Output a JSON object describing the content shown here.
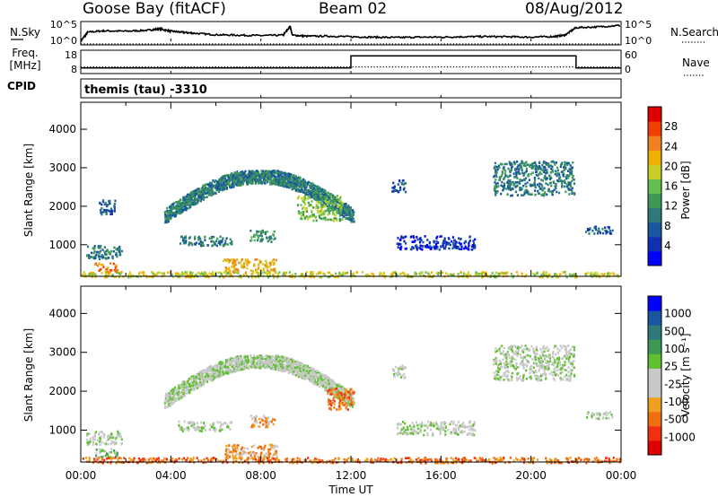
{
  "header": {
    "station": "Goose Bay (fitACF)",
    "beam": "Beam 02",
    "date": "08/Aug/2012"
  },
  "chart_data": [
    {
      "type": "line",
      "panel": "noise",
      "left_label": "N.Sky",
      "right_label": "N.Search",
      "left_ticks": [
        "10^5",
        "10^0"
      ],
      "right_ticks": [
        "10^5",
        "10^0"
      ],
      "x_range_hours": [
        0,
        24
      ],
      "series": [
        {
          "name": "N.Sky",
          "style": "solid",
          "x": [
            0,
            0.3,
            1,
            2,
            3,
            3.5,
            4,
            4.5,
            5,
            6,
            7,
            8,
            9,
            9.3,
            9.4,
            10,
            11,
            12,
            13,
            14,
            15,
            16,
            17,
            18,
            19,
            20,
            21,
            21.5,
            22,
            23,
            24
          ],
          "y": [
            0.1,
            0.55,
            0.62,
            0.6,
            0.65,
            0.72,
            0.6,
            0.55,
            0.5,
            0.42,
            0.4,
            0.38,
            0.4,
            0.85,
            0.4,
            0.35,
            0.35,
            0.32,
            0.3,
            0.28,
            0.3,
            0.3,
            0.32,
            0.33,
            0.32,
            0.3,
            0.33,
            0.4,
            0.78,
            0.82,
            0.9
          ]
        },
        {
          "name": "N.Search",
          "style": "dotted",
          "x": [
            0,
            24
          ],
          "y": [
            0.0,
            0.0
          ]
        }
      ]
    },
    {
      "type": "line",
      "panel": "frequency",
      "left_label": "Freq.",
      "left_unit": "[MHz]",
      "right_label": "Nave",
      "left_ticks": [
        "18",
        "8"
      ],
      "right_ticks": [
        "60",
        "0"
      ],
      "series": [
        {
          "name": "Freq.",
          "style": "solid",
          "x": [
            0,
            12,
            12,
            22,
            22,
            24
          ],
          "y": [
            10.4,
            10.4,
            15.6,
            15.6,
            10.4,
            10.4
          ]
        },
        {
          "name": "Nave",
          "style": "dotted",
          "x": [
            0,
            24
          ],
          "y": [
            17,
            17
          ]
        }
      ]
    },
    {
      "type": "table",
      "panel": "cpid",
      "label": "CPID",
      "value": "themis (tau)  -3310"
    },
    {
      "type": "heatmap",
      "panel": "power",
      "ylabel": "Slant Range [km]",
      "yticks": [
        "1000",
        "2000",
        "3000",
        "4000"
      ],
      "y_range_km": [
        180,
        4700
      ],
      "colorbar_label": "Power [dB]",
      "colorbar_ticks": [
        "4",
        "8",
        "12",
        "16",
        "20",
        "24",
        "28"
      ],
      "palette": [
        "#0000ff",
        "#1030b0",
        "#1a56a0",
        "#2e7a7a",
        "#3c9a55",
        "#66c050",
        "#c8d028",
        "#f0b000",
        "#f08020",
        "#f04000",
        "#e00000"
      ],
      "x_range_hours": [
        0,
        24
      ],
      "blobs": [
        {
          "t0": 3.7,
          "t1": 12.1,
          "r0": 1550,
          "r1": 2950,
          "shape": "arc",
          "level": 3
        },
        {
          "t0": 9.6,
          "t1": 11.6,
          "r0": 1650,
          "r1": 2300,
          "shape": "block",
          "level": 5
        },
        {
          "t0": 4.3,
          "t1": 6.7,
          "r0": 1000,
          "r1": 1250,
          "shape": "block",
          "level": 3
        },
        {
          "t0": 7.5,
          "t1": 8.6,
          "r0": 1100,
          "r1": 1400,
          "shape": "block",
          "level": 4
        },
        {
          "t0": 0.2,
          "t1": 1.8,
          "r0": 650,
          "r1": 1000,
          "shape": "block",
          "level": 3
        },
        {
          "t0": 0.6,
          "t1": 1.6,
          "r0": 300,
          "r1": 550,
          "shape": "block",
          "level": 8
        },
        {
          "t0": 6.3,
          "t1": 8.7,
          "r0": 300,
          "r1": 650,
          "shape": "block",
          "level": 7
        },
        {
          "t0": 0.8,
          "t1": 1.5,
          "r0": 1800,
          "r1": 2200,
          "shape": "block",
          "level": 2
        },
        {
          "t0": 13.8,
          "t1": 14.4,
          "r0": 2350,
          "r1": 2700,
          "shape": "block",
          "level": 2
        },
        {
          "t0": 18.3,
          "t1": 21.9,
          "r0": 2300,
          "r1": 3200,
          "shape": "block",
          "level": 3
        },
        {
          "t0": 22.4,
          "t1": 23.6,
          "r0": 1300,
          "r1": 1500,
          "shape": "block",
          "level": 2
        },
        {
          "t0": 14.0,
          "t1": 17.5,
          "r0": 900,
          "r1": 1250,
          "shape": "block",
          "level": 1
        },
        {
          "t0": 0.0,
          "t1": 24.0,
          "r0": 180,
          "r1": 320,
          "shape": "ground",
          "level": 6
        }
      ]
    },
    {
      "type": "heatmap",
      "panel": "velocity",
      "ylabel": "Slant Range [km]",
      "yticks": [
        "1000",
        "2000",
        "3000",
        "4000"
      ],
      "y_range_km": [
        180,
        4700
      ],
      "colorbar_label": "Velocity [m s⁻¹]",
      "colorbar_ticks": [
        "1000",
        "500",
        "100",
        "25",
        "-25",
        "-100",
        "-500",
        "-1000"
      ],
      "palette": [
        "#e00000",
        "#f03010",
        "#f07010",
        "#f0a020",
        "#c8c8c8",
        "#c8c8c8",
        "#60c030",
        "#3c9a55",
        "#2e7a7a",
        "#1a56a0",
        "#0000ff"
      ],
      "x_range_hours": [
        0,
        24
      ],
      "blobs": [
        {
          "t0": 3.7,
          "t1": 12.1,
          "r0": 1550,
          "r1": 2950,
          "shape": "arc",
          "level": 5
        },
        {
          "t0": 10.9,
          "t1": 12.1,
          "r0": 1550,
          "r1": 2100,
          "shape": "block",
          "level": 2
        },
        {
          "t0": 4.3,
          "t1": 6.7,
          "r0": 1000,
          "r1": 1250,
          "shape": "block",
          "level": 5
        },
        {
          "t0": 7.5,
          "t1": 8.6,
          "r0": 1100,
          "r1": 1400,
          "shape": "block",
          "level": 3
        },
        {
          "t0": 0.2,
          "t1": 1.8,
          "r0": 650,
          "r1": 1000,
          "shape": "block",
          "level": 5
        },
        {
          "t0": 0.6,
          "t1": 1.6,
          "r0": 300,
          "r1": 550,
          "shape": "block",
          "level": 6
        },
        {
          "t0": 6.3,
          "t1": 8.7,
          "r0": 300,
          "r1": 650,
          "shape": "block",
          "level": 3
        },
        {
          "t0": 13.8,
          "t1": 14.4,
          "r0": 2350,
          "r1": 2700,
          "shape": "block",
          "level": 5
        },
        {
          "t0": 18.3,
          "t1": 21.9,
          "r0": 2300,
          "r1": 3200,
          "shape": "block",
          "level": 5
        },
        {
          "t0": 22.4,
          "t1": 23.6,
          "r0": 1300,
          "r1": 1500,
          "shape": "block",
          "level": 5
        },
        {
          "t0": 14.0,
          "t1": 17.5,
          "r0": 900,
          "r1": 1250,
          "shape": "block",
          "level": 5
        },
        {
          "t0": 0.0,
          "t1": 24.0,
          "r0": 180,
          "r1": 320,
          "shape": "ground",
          "level": 2
        }
      ]
    }
  ],
  "x_axis": {
    "label": "Time UT",
    "ticks": [
      "00:00",
      "04:00",
      "08:00",
      "12:00",
      "16:00",
      "20:00",
      "00:00"
    ]
  }
}
